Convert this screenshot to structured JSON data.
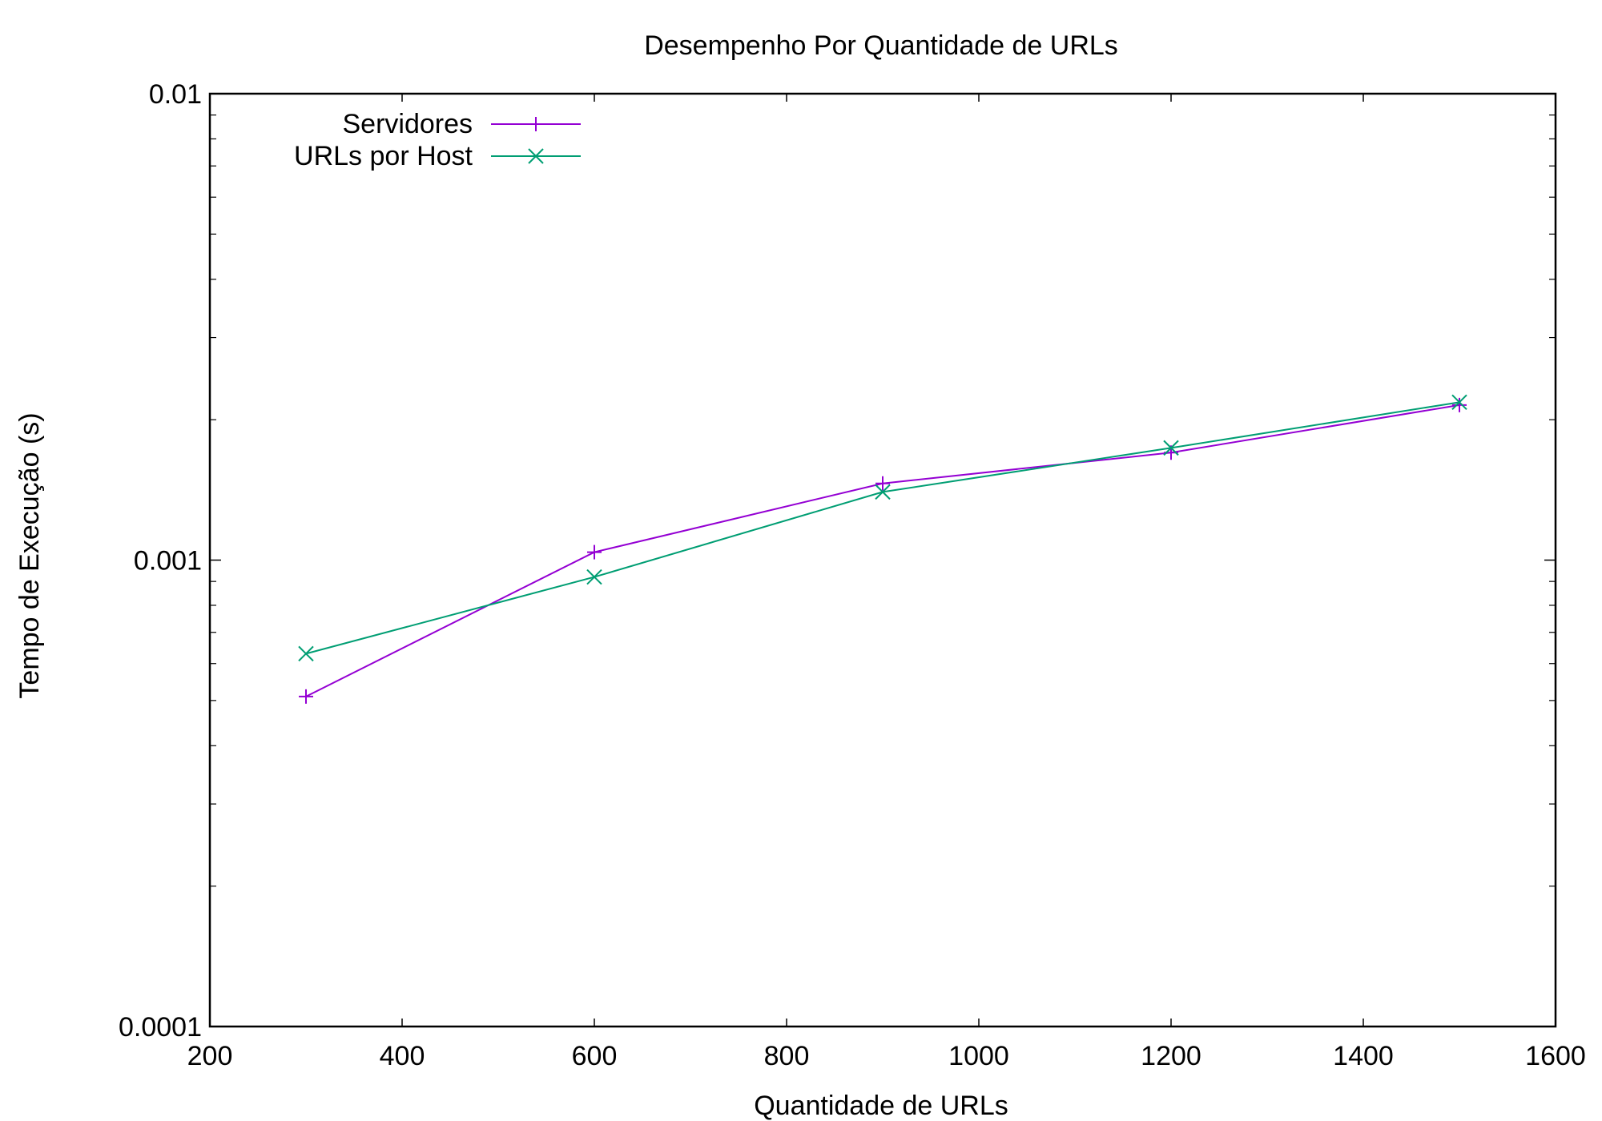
{
  "chart_data": {
    "type": "line",
    "title": "Desempenho Por Quantidade de URLs",
    "xlabel": "Quantidade de URLs",
    "ylabel": "Tempo de Execução (s)",
    "xlim": [
      200,
      1600
    ],
    "ylim": [
      0.0001,
      0.01
    ],
    "yscale": "log",
    "grid": false,
    "legend_position": "top-left",
    "x_ticks": [
      "200",
      "400",
      "600",
      "800",
      "1000",
      "1200",
      "1400",
      "1600"
    ],
    "y_ticks": [
      "0.0001",
      "0.001",
      "0.01"
    ],
    "x": [
      300,
      600,
      900,
      1200,
      1500
    ],
    "series": [
      {
        "name": "Servidores",
        "marker": "plus",
        "color": "#9400d3",
        "values": [
          0.00051,
          0.00104,
          0.00146,
          0.0017,
          0.00215
        ]
      },
      {
        "name": "URLs por Host",
        "marker": "cross",
        "color": "#009e73",
        "values": [
          0.00063,
          0.00092,
          0.0014,
          0.00174,
          0.00218
        ]
      }
    ]
  }
}
